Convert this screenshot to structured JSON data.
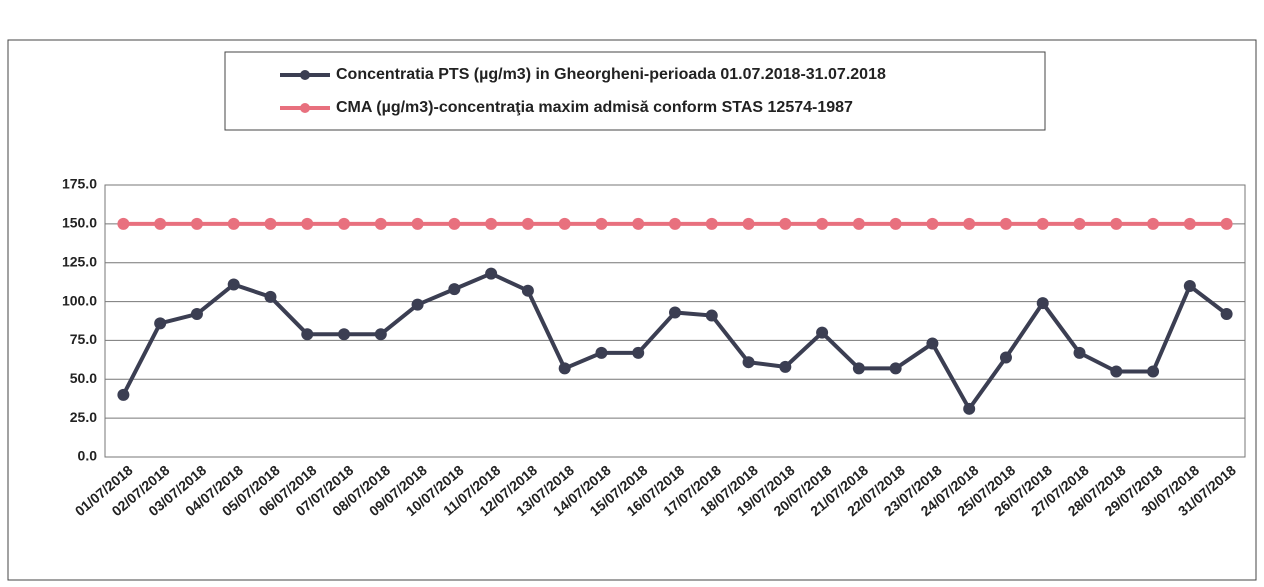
{
  "chart_data": {
    "type": "line",
    "categories": [
      "01/07/2018",
      "02/07/2018",
      "03/07/2018",
      "04/07/2018",
      "05/07/2018",
      "06/07/2018",
      "07/07/2018",
      "08/07/2018",
      "09/07/2018",
      "10/07/2018",
      "11/07/2018",
      "12/07/2018",
      "13/07/2018",
      "14/07/2018",
      "15/07/2018",
      "16/07/2018",
      "17/07/2018",
      "18/07/2018",
      "19/07/2018",
      "20/07/2018",
      "21/07/2018",
      "22/07/2018",
      "23/07/2018",
      "24/07/2018",
      "25/07/2018",
      "26/07/2018",
      "27/07/2018",
      "28/07/2018",
      "29/07/2018",
      "30/07/2018",
      "31/07/2018"
    ],
    "series": [
      {
        "name": "Concentratia PTS (µg/m3) in Gheorgheni-perioada 01.07.2018-31.07.2018",
        "color": "#3b3e52",
        "values": [
          40,
          86,
          92,
          111,
          103,
          79,
          79,
          79,
          98,
          108,
          118,
          107,
          57,
          67,
          67,
          93,
          91,
          61,
          58,
          80,
          57,
          57,
          73,
          31,
          64,
          99,
          67,
          55,
          55,
          110,
          92
        ]
      },
      {
        "name": "CMA (µg/m3)-concentraţia maxim admisă conform STAS 12574-1987",
        "color": "#e8707e",
        "values": [
          150,
          150,
          150,
          150,
          150,
          150,
          150,
          150,
          150,
          150,
          150,
          150,
          150,
          150,
          150,
          150,
          150,
          150,
          150,
          150,
          150,
          150,
          150,
          150,
          150,
          150,
          150,
          150,
          150,
          150,
          150
        ]
      }
    ],
    "ylim": [
      0,
      175
    ],
    "yticks": [
      {
        "value": 0,
        "label": "0.0"
      },
      {
        "value": 25,
        "label": "25.0"
      },
      {
        "value": 50,
        "label": "50.0"
      },
      {
        "value": 75,
        "label": "75.0"
      },
      {
        "value": 100,
        "label": "100.0"
      },
      {
        "value": 125,
        "label": "125.0"
      },
      {
        "value": 150,
        "label": "150.0"
      },
      {
        "value": 175,
        "label": "175.0"
      }
    ],
    "grid": true
  }
}
